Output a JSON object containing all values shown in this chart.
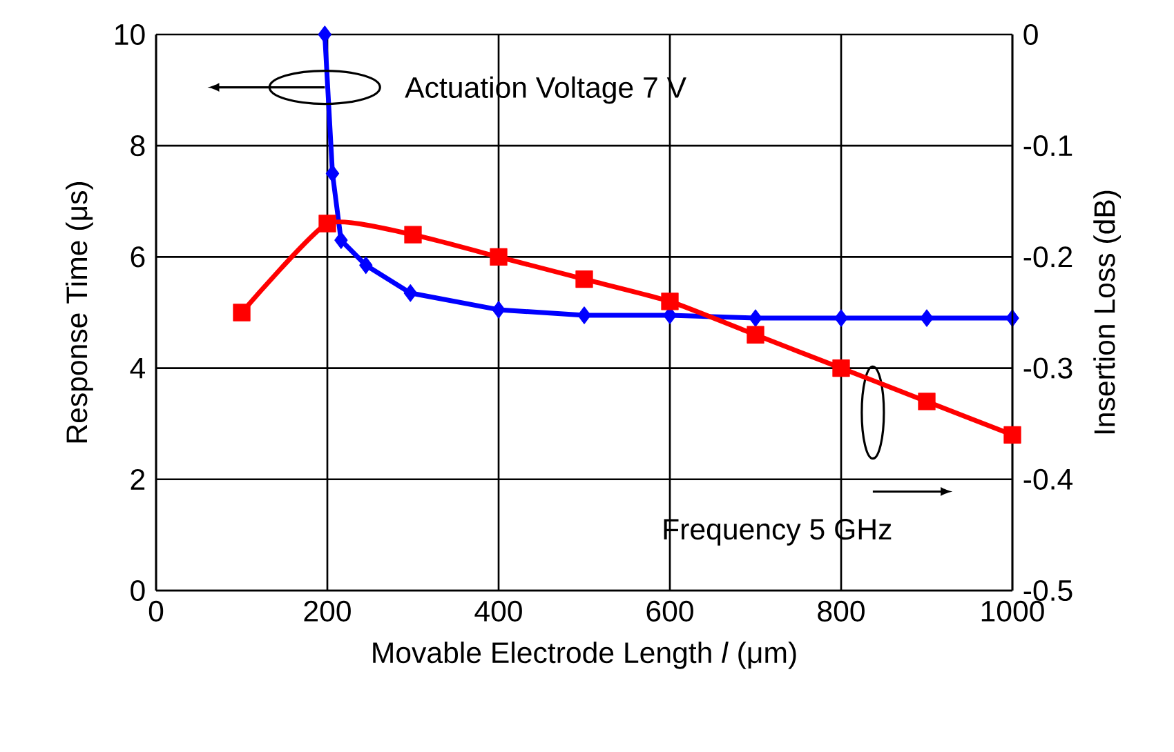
{
  "chart_data": {
    "type": "line",
    "xlabel": "Movable Electrode Length *l* (μm)",
    "ylabel": "Response Time (μs)",
    "y2label": "Insertion Loss (dB)",
    "xlim": [
      0,
      1000
    ],
    "xticks": [
      0,
      200,
      400,
      600,
      800,
      1000
    ],
    "ylim": [
      0,
      10
    ],
    "yticks": [
      0,
      2,
      4,
      6,
      8,
      10
    ],
    "y2lim": [
      -0.5,
      0
    ],
    "y2ticks": [
      -0.5,
      -0.4,
      -0.3,
      -0.2,
      -0.1,
      0
    ],
    "grid": true,
    "annotations": [
      "Actuation Voltage 7 V",
      "Frequency 5 GHz"
    ],
    "series": [
      {
        "color": "#0000ff",
        "marker": "diamond",
        "x": [
          197,
          206,
          216,
          245,
          297,
          400,
          500,
          600,
          700,
          800,
          900,
          1000
        ],
        "values": [
          10,
          7.5,
          6.3,
          5.85,
          5.35,
          5.05,
          4.95,
          4.95,
          4.9,
          4.9,
          4.9,
          4.9
        ]
      },
      {
        "color": "#ff0000",
        "marker": "square",
        "axis": "y2",
        "x": [
          100,
          200,
          300,
          400,
          500,
          600,
          700,
          800,
          900,
          1000
        ],
        "values": [
          -0.25,
          -0.17,
          -0.18,
          -0.2,
          -0.22,
          -0.24,
          -0.27,
          -0.3,
          -0.33,
          -0.36
        ]
      }
    ]
  }
}
